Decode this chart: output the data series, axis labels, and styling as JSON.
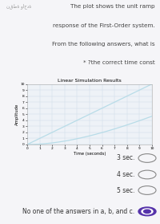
{
  "title": "Linear Simulation Results",
  "xlabel": "Time (seconds)",
  "ylabel": "Amplitude",
  "xlim": [
    0,
    10
  ],
  "ylim": [
    0,
    10
  ],
  "xticks": [
    0,
    1,
    2,
    3,
    4,
    5,
    6,
    7,
    8,
    9,
    10
  ],
  "yticks": [
    0,
    1,
    2,
    3,
    4,
    5,
    6,
    7,
    8,
    9,
    10
  ],
  "line1_color": "#b8dce8",
  "line2_color": "#b8dce8",
  "grid_color": "#d0dde8",
  "plot_bg_color": "#eef2f7",
  "fig_bg": "#f5f5f8",
  "header_text_lines": [
    "The plot shows the unit ramp",
    "response of the First-Order system.",
    "From the following answers, what is",
    "* ?the correct time const"
  ],
  "label_text": "نقطة واحدة",
  "choices": [
    "3 sec.",
    "4 sec.",
    "5 sec.",
    "No one of the answers in a, b, and c."
  ],
  "selected_choice": 3,
  "tau": 7,
  "title_fontsize": 4.5,
  "axis_label_fontsize": 3.8,
  "tick_fontsize": 3.2,
  "header_fontsize": 5.2,
  "label_fontsize": 4.0,
  "choice_fontsize": 5.5
}
